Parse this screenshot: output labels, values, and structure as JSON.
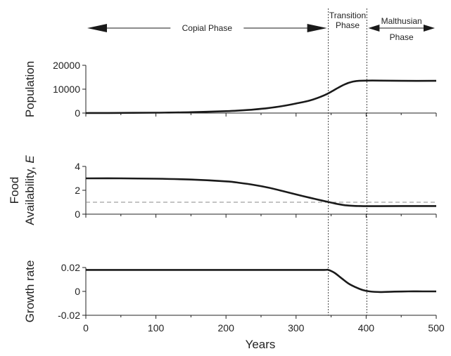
{
  "chart_data": {
    "type": "line",
    "xlabel": "Years",
    "xlim": [
      0,
      500
    ],
    "xticks": [
      "0",
      "100",
      "200",
      "300",
      "400",
      "500"
    ],
    "phase_boundaries": [
      346,
      401
    ],
    "phases": [
      {
        "label": "Copial Phase",
        "lines": [
          "Copial Phase"
        ],
        "x_start": 0,
        "x_end": 346
      },
      {
        "label": "Transition Phase",
        "lines": [
          "Transition",
          "Phase"
        ],
        "x_start": 346,
        "x_end": 401
      },
      {
        "label": "Malthusian Phase",
        "lines": [
          "Malthusian",
          "Phase"
        ],
        "x_start": 401,
        "x_end": 500
      }
    ],
    "panels": [
      {
        "id": "population",
        "ylabel": "Population",
        "ylim": [
          0,
          20000
        ],
        "yticks": [
          {
            "value": 0,
            "label": "0"
          },
          {
            "value": 10000,
            "label": "10000"
          },
          {
            "value": 20000,
            "label": "20000"
          }
        ],
        "series": [
          {
            "x": [
              0,
              50,
              100,
              150,
              200,
              220,
              240,
              260,
              280,
              300,
              320,
              340,
              350,
              360,
              370,
              380,
              390,
              400,
              420,
              450,
              500
            ],
            "values": [
              0,
              60,
              150,
              350,
              800,
              1100,
              1500,
              2100,
              2900,
              4000,
              5300,
              7400,
              8900,
              10600,
              12100,
              13100,
              13500,
              13600,
              13600,
              13500,
              13500
            ]
          }
        ]
      },
      {
        "id": "food",
        "ylabel_lines": [
          "Food",
          "Availability, E"
        ],
        "ylim": [
          0,
          4
        ],
        "yticks": [
          {
            "value": 0,
            "label": "0"
          },
          {
            "value": 2,
            "label": "2"
          },
          {
            "value": 4,
            "label": "4"
          }
        ],
        "reference_line": {
          "value": 1,
          "style": "dashed"
        },
        "series": [
          {
            "x": [
              0,
              50,
              100,
              150,
              200,
              220,
              240,
              260,
              280,
              300,
              320,
              340,
              350,
              360,
              370,
              380,
              390,
              400,
              420,
              450,
              500
            ],
            "values": [
              3.0,
              3.0,
              2.97,
              2.9,
              2.75,
              2.62,
              2.45,
              2.23,
              1.95,
              1.65,
              1.37,
              1.1,
              0.97,
              0.84,
              0.75,
              0.7,
              0.68,
              0.67,
              0.67,
              0.68,
              0.68
            ]
          }
        ]
      },
      {
        "id": "growth",
        "ylabel": "Growth rate",
        "ylim": [
          -0.02,
          0.02
        ],
        "yticks": [
          {
            "value": -0.02,
            "label": "-0.02"
          },
          {
            "value": 0,
            "label": "0"
          },
          {
            "value": 0.02,
            "label": "0.02"
          }
        ],
        "series": [
          {
            "x": [
              0,
              100,
              200,
              300,
              340,
              346,
              355,
              365,
              375,
              385,
              395,
              405,
              420,
              440,
              460,
              480,
              500
            ],
            "values": [
              0.018,
              0.018,
              0.018,
              0.018,
              0.018,
              0.018,
              0.0155,
              0.011,
              0.0065,
              0.0035,
              0.0012,
              0.0,
              -0.0005,
              -0.0002,
              0.0,
              0.0,
              0.0
            ]
          }
        ]
      }
    ]
  }
}
